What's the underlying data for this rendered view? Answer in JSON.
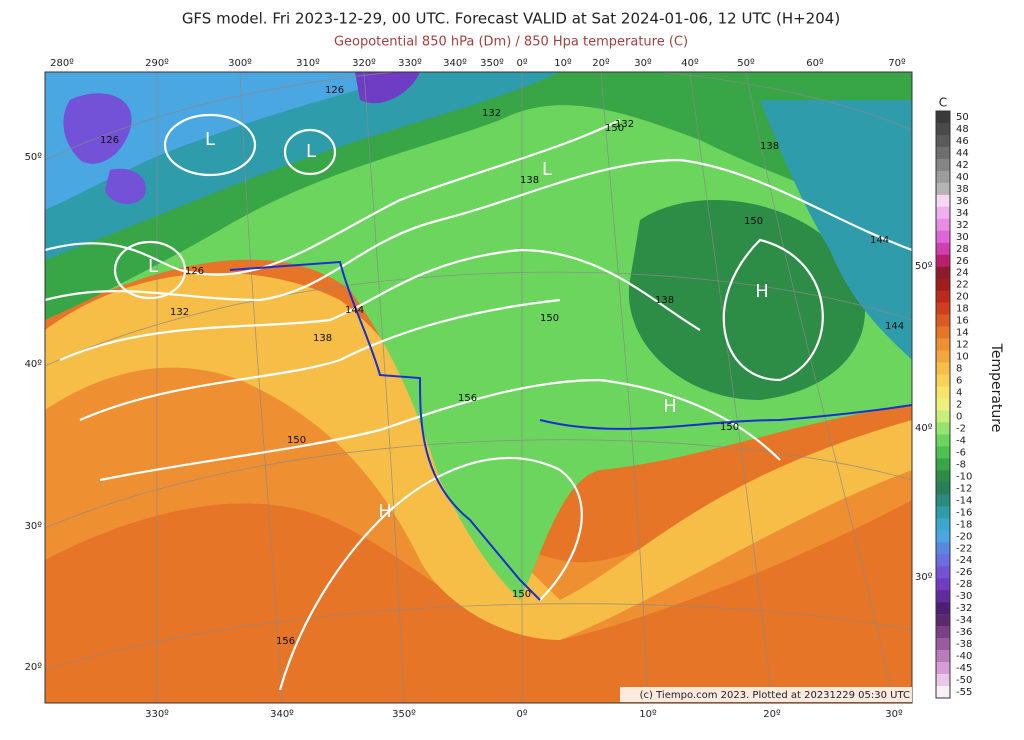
{
  "header": {
    "title": "GFS model. Fri 2023-12-29, 00 UTC. Forecast VALID at Sat 2024-01-06, 12 UTC (H+204)",
    "subtitle": "Geopotential 850 hPa (Dm) / 850 Hpa temperature (C)"
  },
  "top_longitudes": [
    "280º",
    "290º",
    "300º",
    "310º",
    "320º",
    "330º",
    "340º",
    "350º",
    "0º",
    "10º",
    "20º",
    "30º",
    "40º",
    "50º",
    "60º",
    "70º"
  ],
  "bottom_longitudes": [
    "330º",
    "340º",
    "350º",
    "0º",
    "10º",
    "20º",
    "30º"
  ],
  "left_latitudes": [
    "50º",
    "40º",
    "30º",
    "20º"
  ],
  "right_latitudes": [
    "50º",
    "40º",
    "30º"
  ],
  "contour_labels": [
    "126",
    "132",
    "138",
    "144",
    "150",
    "156",
    "126",
    "132",
    "138",
    "144",
    "150",
    "156",
    "150",
    "150",
    "138",
    "150",
    "144",
    "150",
    "132",
    "138",
    "126"
  ],
  "pressure_centers": [
    "L",
    "L",
    "L",
    "L",
    "H",
    "H",
    "H"
  ],
  "colorbar": {
    "unit": "C",
    "title": "Temperature",
    "labels": [
      50,
      48,
      46,
      44,
      42,
      40,
      38,
      36,
      34,
      32,
      30,
      28,
      26,
      24,
      22,
      20,
      18,
      16,
      14,
      12,
      10,
      8,
      6,
      4,
      2,
      0,
      -2,
      -4,
      -6,
      -8,
      -10,
      -12,
      -14,
      -16,
      -18,
      -20,
      -22,
      -24,
      -26,
      -28,
      -30,
      -32,
      -34,
      -36,
      -38,
      -40,
      -45,
      -50,
      -55
    ],
    "colors": [
      "#3a3a3a",
      "#4a4a4a",
      "#5a5a5a",
      "#6e6e6e",
      "#858585",
      "#9c9c9c",
      "#b4b4b4",
      "#f7d6f5",
      "#f0b0ee",
      "#e88ce4",
      "#dd66d8",
      "#d03fb0",
      "#b8206e",
      "#8e1a2c",
      "#a11d1d",
      "#bc2a1c",
      "#cf3f1e",
      "#dc5a22",
      "#e77528",
      "#ee8f31",
      "#f2a63c",
      "#f6bd47",
      "#f8d156",
      "#f7e46a",
      "#eef07c",
      "#c8ee7a",
      "#96e36e",
      "#6bd55e",
      "#4cc150",
      "#38a646",
      "#2d8c45",
      "#2a7f5a",
      "#2a8c7c",
      "#2e9cab",
      "#39a8cf",
      "#4aa7e2",
      "#5a88e0",
      "#6b6ee0",
      "#7352d8",
      "#6f3cc4",
      "#5e2c9e",
      "#4a2074",
      "#5a2a6e",
      "#7a3f85",
      "#9a5aa0",
      "#b97bba",
      "#d49ed5",
      "#e9c6ea",
      "#f7f0f7"
    ]
  },
  "copyright": "(c) Tiempo.com 2023. Plotted at 20231229 05:30 UTC"
}
